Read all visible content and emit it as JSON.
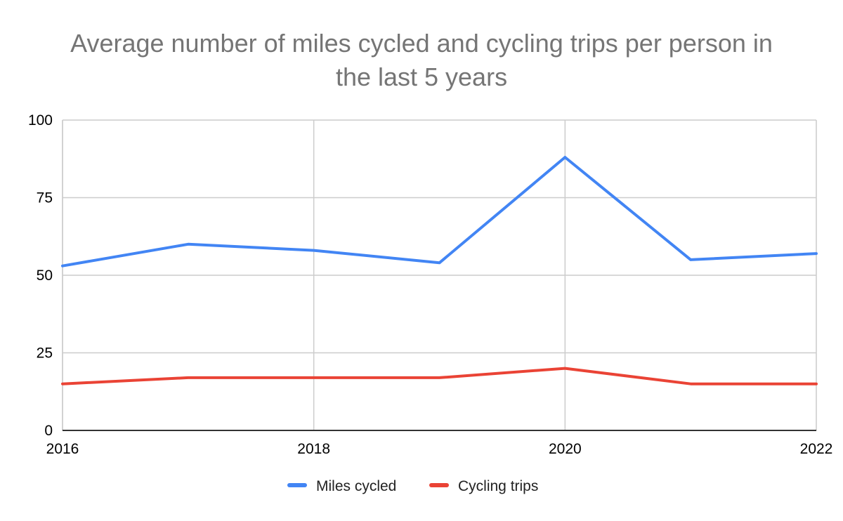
{
  "chart_data": {
    "type": "line",
    "title": "Average number of miles cycled and cycling trips per person in the last 5 years",
    "x": [
      2016,
      2017,
      2018,
      2019,
      2020,
      2021,
      2022
    ],
    "x_tick_labels": [
      "2016",
      "2018",
      "2020",
      "2022"
    ],
    "xlim": [
      2016,
      2022
    ],
    "ylim": [
      0,
      100
    ],
    "y_ticks": [
      0,
      25,
      50,
      75,
      100
    ],
    "y_tick_labels": [
      "0",
      "25",
      "50",
      "75",
      "100"
    ],
    "xlabel": "",
    "ylabel": "",
    "grid": true,
    "legend_position": "bottom",
    "series": [
      {
        "name": "Miles cycled",
        "color": "#4285F4",
        "values": [
          53,
          60,
          58,
          54,
          88,
          55,
          57
        ]
      },
      {
        "name": "Cycling trips",
        "color": "#EA4335",
        "values": [
          15,
          17,
          17,
          17,
          20,
          15,
          15
        ]
      }
    ]
  }
}
